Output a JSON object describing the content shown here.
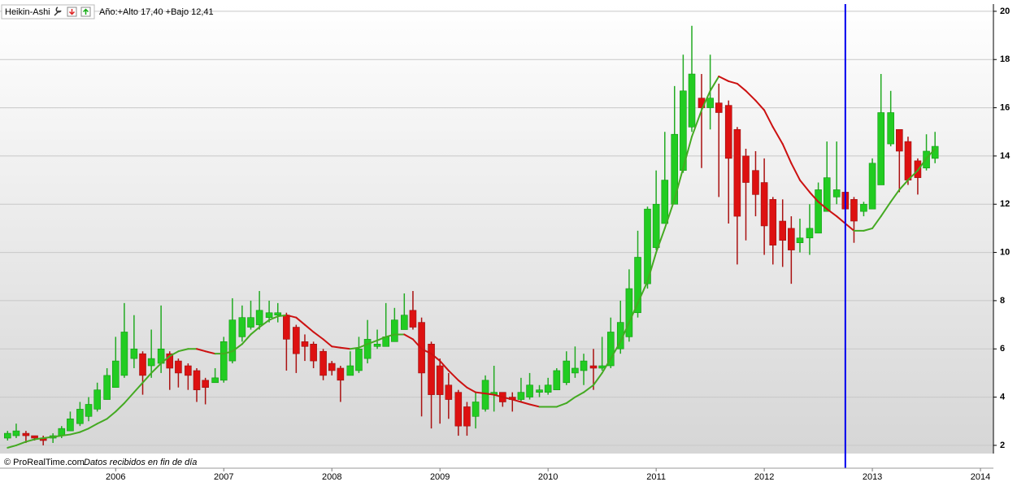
{
  "chart_data": {
    "type": "candlestick",
    "indicator": "Heikin-Ashi",
    "info": "Año:+Alto 17,40 +Bajo 12,41",
    "source": "© ProRealTime.com",
    "note": "Datos recibidos en fin de día",
    "up_color": "#22cc22",
    "down_color": "#dd1111",
    "xlim": [
      2004.93,
      2014.12
    ],
    "xticks": [
      2006,
      2007,
      2008,
      2009,
      2010,
      2011,
      2012,
      2013,
      2014
    ],
    "ylim": [
      1.66,
      20.3
    ],
    "yticks": [
      2,
      4,
      6,
      8,
      10,
      12,
      14,
      16,
      18,
      20
    ],
    "grid": true,
    "x": [
      2005.0,
      2005.08,
      2005.17,
      2005.25,
      2005.33,
      2005.42,
      2005.5,
      2005.58,
      2005.67,
      2005.75,
      2005.83,
      2005.92,
      2006.0,
      2006.08,
      2006.17,
      2006.25,
      2006.33,
      2006.42,
      2006.5,
      2006.58,
      2006.67,
      2006.75,
      2006.83,
      2006.92,
      2007.0,
      2007.08,
      2007.17,
      2007.25,
      2007.33,
      2007.42,
      2007.5,
      2007.58,
      2007.67,
      2007.75,
      2007.83,
      2007.92,
      2008.0,
      2008.08,
      2008.17,
      2008.25,
      2008.33,
      2008.42,
      2008.5,
      2008.58,
      2008.67,
      2008.75,
      2008.83,
      2008.92,
      2009.0,
      2009.08,
      2009.17,
      2009.25,
      2009.33,
      2009.42,
      2009.5,
      2009.58,
      2009.67,
      2009.75,
      2009.83,
      2009.92,
      2010.0,
      2010.08,
      2010.17,
      2010.25,
      2010.33,
      2010.42,
      2010.5,
      2010.58,
      2010.67,
      2010.75,
      2010.83,
      2010.92,
      2011.0,
      2011.08,
      2011.17,
      2011.25,
      2011.33,
      2011.42,
      2011.5,
      2011.58,
      2011.67,
      2011.75,
      2011.83,
      2011.92,
      2012.0,
      2012.08,
      2012.17,
      2012.25,
      2012.33,
      2012.42,
      2012.5,
      2012.58,
      2012.67,
      2012.75,
      2012.83,
      2012.92,
      2013.0,
      2013.08,
      2013.17,
      2013.25,
      2013.33,
      2013.42,
      2013.5,
      2013.58
    ],
    "open": [
      2.3,
      2.4,
      2.5,
      2.4,
      2.3,
      2.3,
      2.4,
      2.6,
      2.9,
      3.2,
      3.5,
      3.9,
      4.4,
      4.9,
      5.6,
      5.8,
      5.3,
      5.4,
      5.8,
      5.5,
      5.3,
      5.1,
      4.7,
      4.6,
      4.7,
      5.5,
      6.5,
      6.9,
      7.0,
      7.3,
      7.4,
      7.4,
      6.9,
      6.3,
      6.2,
      5.9,
      5.4,
      5.2,
      4.9,
      5.1,
      5.6,
      6.1,
      6.1,
      6.3,
      6.8,
      7.6,
      7.1,
      6.2,
      5.3,
      4.5,
      4.2,
      3.6,
      3.2,
      3.5,
      4.1,
      4.2,
      4.0,
      3.9,
      4.0,
      4.2,
      4.2,
      4.3,
      4.6,
      5.0,
      5.1,
      5.3,
      5.2,
      5.3,
      6.0,
      6.5,
      7.5,
      8.7,
      10.2,
      11.2,
      12.0,
      13.4,
      15.2,
      16.4,
      16.0,
      16.2,
      16.1,
      15.1,
      14.0,
      13.4,
      12.9,
      12.2,
      11.3,
      11.0,
      10.4,
      10.6,
      10.8,
      11.7,
      12.3,
      12.5,
      12.2,
      11.7,
      11.8,
      12.8,
      14.5,
      15.1,
      14.6,
      13.8,
      13.5,
      13.9
    ],
    "high": [
      2.6,
      2.9,
      2.6,
      2.4,
      2.4,
      2.5,
      2.8,
      3.4,
      3.8,
      4.0,
      4.6,
      5.2,
      6.5,
      7.9,
      7.4,
      5.9,
      6.8,
      7.8,
      5.9,
      5.6,
      5.4,
      5.2,
      4.8,
      5.2,
      6.5,
      8.1,
      7.8,
      8.0,
      8.4,
      8.0,
      7.9,
      7.5,
      7.0,
      6.6,
      6.3,
      6.0,
      5.5,
      5.3,
      5.9,
      6.5,
      7.2,
      6.8,
      7.9,
      7.7,
      8.3,
      8.4,
      7.3,
      6.3,
      5.6,
      5.0,
      4.3,
      3.8,
      4.2,
      4.9,
      5.3,
      4.2,
      4.2,
      4.8,
      5.0,
      4.5,
      4.8,
      5.2,
      5.9,
      6.1,
      5.8,
      6.0,
      6.5,
      7.3,
      8.0,
      9.3,
      10.9,
      11.9,
      13.4,
      15.0,
      16.9,
      18.2,
      19.4,
      17.4,
      18.2,
      17.0,
      16.3,
      15.2,
      14.3,
      14.2,
      13.9,
      12.3,
      12.2,
      11.5,
      11.4,
      12.0,
      12.9,
      14.6,
      14.6,
      12.6,
      12.3,
      12.1,
      13.9,
      17.4,
      16.7,
      15.1,
      14.8,
      13.9,
      14.9,
      15.0
    ],
    "low": [
      2.2,
      2.3,
      2.1,
      2.2,
      2.0,
      2.1,
      2.3,
      2.6,
      2.8,
      3.0,
      3.4,
      3.9,
      4.4,
      4.8,
      5.2,
      4.1,
      4.8,
      5.0,
      4.3,
      4.4,
      4.3,
      3.8,
      3.7,
      4.6,
      4.6,
      5.4,
      6.3,
      6.8,
      6.8,
      7.1,
      7.1,
      5.1,
      5.0,
      5.5,
      5.2,
      4.7,
      4.9,
      3.8,
      4.9,
      5.0,
      5.4,
      6.0,
      6.1,
      6.3,
      6.8,
      6.8,
      3.2,
      2.7,
      2.9,
      3.1,
      2.4,
      2.4,
      2.7,
      3.4,
      3.4,
      3.6,
      3.4,
      3.8,
      3.9,
      4.0,
      4.1,
      4.3,
      4.5,
      4.8,
      4.5,
      4.3,
      5.1,
      5.2,
      5.8,
      6.3,
      7.3,
      8.5,
      10.1,
      11.2,
      12.0,
      13.3,
      15.0,
      13.5,
      15.1,
      12.3,
      11.2,
      9.5,
      10.5,
      11.5,
      9.9,
      9.5,
      9.4,
      8.7,
      10.0,
      9.9,
      10.8,
      11.7,
      12.0,
      11.1,
      10.4,
      11.5,
      11.8,
      12.8,
      14.4,
      12.5,
      12.8,
      12.4,
      13.4,
      13.7
    ],
    "close": [
      2.5,
      2.6,
      2.4,
      2.3,
      2.2,
      2.4,
      2.7,
      3.1,
      3.5,
      3.7,
      4.3,
      4.9,
      5.5,
      6.7,
      6.0,
      4.9,
      5.6,
      6.0,
      5.2,
      5.0,
      4.9,
      4.3,
      4.4,
      4.8,
      6.3,
      7.2,
      7.3,
      7.3,
      7.6,
      7.5,
      7.5,
      6.4,
      5.8,
      6.1,
      5.5,
      4.9,
      5.1,
      4.7,
      5.3,
      6.0,
      6.4,
      6.2,
      6.5,
      7.2,
      7.4,
      6.9,
      5.0,
      4.1,
      4.1,
      3.9,
      2.8,
      2.8,
      3.8,
      4.7,
      4.2,
      3.8,
      3.9,
      4.2,
      4.5,
      4.3,
      4.5,
      5.1,
      5.5,
      5.2,
      5.5,
      5.2,
      5.3,
      6.7,
      7.1,
      8.5,
      9.8,
      11.8,
      12.0,
      13.0,
      14.9,
      16.7,
      17.4,
      16.0,
      16.4,
      15.8,
      13.9,
      11.5,
      12.9,
      12.4,
      11.1,
      10.3,
      10.5,
      10.1,
      10.6,
      11.0,
      12.6,
      13.1,
      12.6,
      11.8,
      11.3,
      12.0,
      13.7,
      15.8,
      15.8,
      14.2,
      13.0,
      13.1,
      14.2,
      14.4
    ],
    "ma": {
      "up_color": "#44aa22",
      "down_color": "#cc1111",
      "values": [
        1.9,
        2.0,
        2.15,
        2.25,
        2.3,
        2.35,
        2.4,
        2.45,
        2.55,
        2.7,
        2.9,
        3.1,
        3.4,
        3.75,
        4.2,
        4.6,
        5.0,
        5.4,
        5.7,
        5.9,
        6.0,
        6.0,
        5.9,
        5.8,
        5.8,
        5.9,
        6.2,
        6.6,
        6.9,
        7.2,
        7.35,
        7.4,
        7.3,
        7.0,
        6.7,
        6.4,
        6.1,
        6.05,
        6.0,
        6.05,
        6.2,
        6.35,
        6.5,
        6.6,
        6.6,
        6.4,
        6.0,
        5.8,
        5.5,
        5.1,
        4.7,
        4.4,
        4.2,
        4.15,
        4.1,
        4.0,
        3.9,
        3.8,
        3.7,
        3.6,
        3.6,
        3.6,
        3.75,
        4.0,
        4.2,
        4.5,
        5.0,
        5.6,
        6.3,
        7.1,
        7.9,
        8.8,
        10.0,
        11.0,
        12.2,
        13.5,
        14.8,
        15.9,
        16.7,
        17.3,
        17.1,
        17.0,
        16.7,
        16.3,
        15.9,
        15.2,
        14.5,
        13.7,
        13.0,
        12.5,
        12.1,
        11.8,
        11.5,
        11.2,
        10.9,
        10.9,
        11.0,
        11.5,
        12.1,
        12.6,
        13.0,
        13.4,
        13.9,
        14.3
      ]
    },
    "vline": {
      "x": 2012.75,
      "color": "#0000ee"
    }
  }
}
